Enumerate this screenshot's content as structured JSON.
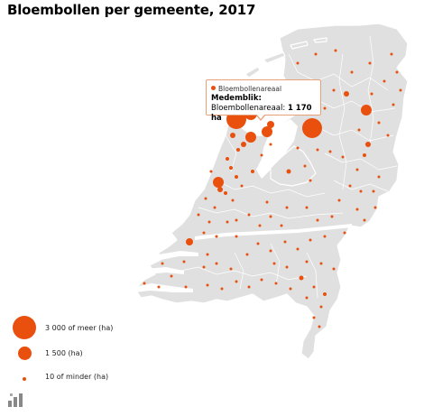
{
  "title": "Bloembollen per gemeente, 2017",
  "tooltip": {
    "series": "Bloembollenareaal",
    "municipality": "Medemblik:",
    "metric": "Bloembollenareaal:",
    "value": "1 170 ha"
  },
  "legend": [
    {
      "label": "3 000 of meer (ha)",
      "value": 3000
    },
    {
      "label": "1 500 (ha)",
      "value": 1500
    },
    {
      "label": "10 of minder (ha)",
      "value": 10
    }
  ],
  "colors": {
    "bubble": "#e9500e",
    "land": "#e0e0e0",
    "tooltip_border": "#e9a07a"
  },
  "icons": {
    "logo": "cbs-logo-icon"
  }
}
